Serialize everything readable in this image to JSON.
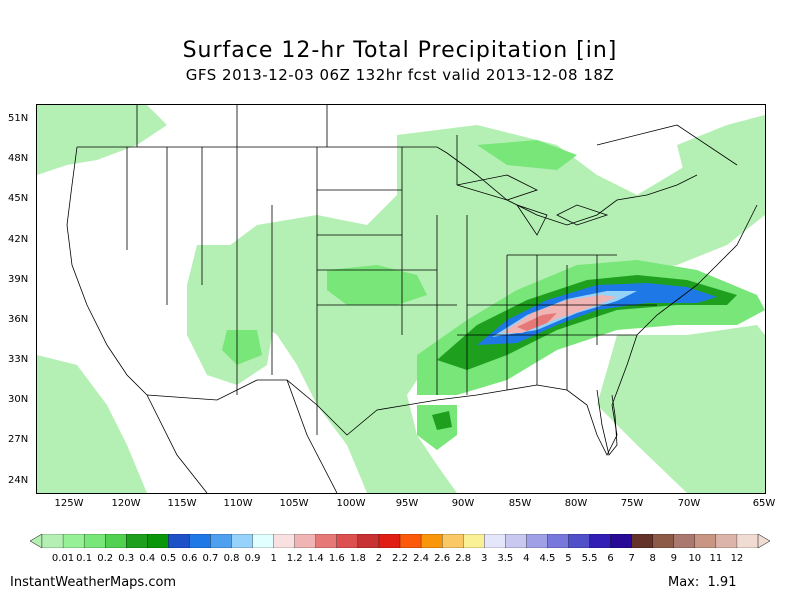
{
  "title": "Surface 12-hr Total Precipitation [in]",
  "subtitle": "GFS 2013-12-03 06Z 132hr fcst valid 2013-12-08 18Z",
  "map": {
    "lat_labels": [
      "51N",
      "48N",
      "45N",
      "42N",
      "39N",
      "36N",
      "33N",
      "30N",
      "27N",
      "24N"
    ],
    "lon_labels": [
      "125W",
      "120W",
      "115W",
      "110W",
      "105W",
      "100W",
      "95W",
      "90W",
      "85W",
      "80W",
      "75W",
      "70W",
      "65W"
    ],
    "precip_colors": {
      "light_green": "#b4f0b4",
      "green": "#78e678",
      "mid_green": "#50d250",
      "dark_green": "#1ea01e",
      "blue": "#1e78e6",
      "light_blue": "#78b4f0",
      "pale_blue": "#c8e6fa",
      "pink": "#f0b4b4",
      "red_pink": "#e67878"
    }
  },
  "colorbar": {
    "labels": [
      "0.01",
      "0.1",
      "0.2",
      "0.3",
      "0.4",
      "0.5",
      "0.6",
      "0.7",
      "0.8",
      "0.9",
      "1",
      "1.2",
      "1.4",
      "1.6",
      "1.8",
      "2",
      "2.2",
      "2.4",
      "2.6",
      "2.8",
      "3",
      "3.5",
      "4",
      "4.5",
      "5",
      "5.5",
      "6",
      "7",
      "8",
      "9",
      "10",
      "11",
      "12"
    ],
    "colors": [
      "#b4f0b4",
      "#96f096",
      "#78e678",
      "#50d250",
      "#1ea01e",
      "#0a960a",
      "#1e50c8",
      "#1e78e6",
      "#50a0f0",
      "#96d2fa",
      "#e1ffff",
      "#fae1e1",
      "#f0b4b4",
      "#e67878",
      "#dc5050",
      "#c83232",
      "#e11e14",
      "#fa5a0a",
      "#fa960a",
      "#fac864",
      "#faf096",
      "#e6e6fa",
      "#c8c8f0",
      "#a0a0e6",
      "#7878dc",
      "#5050c8",
      "#321eb4",
      "#280a96",
      "#643228",
      "#8c5a46",
      "#aa786e",
      "#c89682",
      "#dcb4aa",
      "#f0dcd2"
    ]
  },
  "footer": {
    "site": "InstantWeatherMaps.com",
    "max_label": "Max:",
    "max_value": "1.91"
  }
}
